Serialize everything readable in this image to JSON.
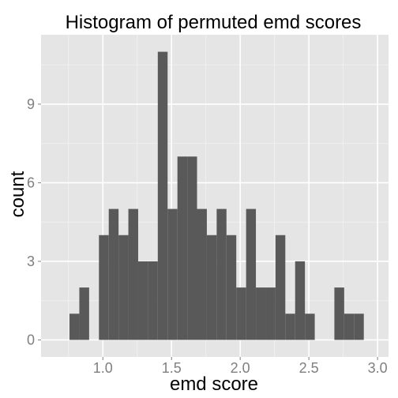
{
  "chart_data": {
    "type": "bar",
    "title": "Histogram of permuted emd scores",
    "xlabel": "emd score",
    "ylabel": "count",
    "xlim": [
      0.55,
      3.08
    ],
    "ylim": [
      -0.65,
      11.65
    ],
    "x_ticks": [
      1.0,
      1.5,
      2.0,
      2.5,
      3.0
    ],
    "x_tick_labels": [
      "1.0",
      "1.5",
      "2.0",
      "2.5",
      "3.0"
    ],
    "y_ticks": [
      0,
      3,
      6,
      9
    ],
    "y_tick_labels": [
      "0",
      "3",
      "6",
      "9"
    ],
    "bin_width": 0.0714,
    "bins": [
      {
        "x0": 0.7571,
        "count": 1
      },
      {
        "x0": 0.8286,
        "count": 2
      },
      {
        "x0": 0.9,
        "count": 0
      },
      {
        "x0": 0.9714,
        "count": 4
      },
      {
        "x0": 1.0429,
        "count": 5
      },
      {
        "x0": 1.1143,
        "count": 4
      },
      {
        "x0": 1.1857,
        "count": 5
      },
      {
        "x0": 1.2571,
        "count": 3
      },
      {
        "x0": 1.3286,
        "count": 3
      },
      {
        "x0": 1.4,
        "count": 11
      },
      {
        "x0": 1.4714,
        "count": 5
      },
      {
        "x0": 1.5429,
        "count": 7
      },
      {
        "x0": 1.6143,
        "count": 7
      },
      {
        "x0": 1.6857,
        "count": 5
      },
      {
        "x0": 1.7571,
        "count": 4
      },
      {
        "x0": 1.8286,
        "count": 5
      },
      {
        "x0": 1.9,
        "count": 4
      },
      {
        "x0": 1.9714,
        "count": 2
      },
      {
        "x0": 2.0429,
        "count": 5
      },
      {
        "x0": 2.1143,
        "count": 2
      },
      {
        "x0": 2.1857,
        "count": 2
      },
      {
        "x0": 2.2571,
        "count": 4
      },
      {
        "x0": 2.3286,
        "count": 1
      },
      {
        "x0": 2.4,
        "count": 3
      },
      {
        "x0": 2.4714,
        "count": 1
      },
      {
        "x0": 2.5429,
        "count": 0
      },
      {
        "x0": 2.6143,
        "count": 0
      },
      {
        "x0": 2.6857,
        "count": 2
      },
      {
        "x0": 2.7571,
        "count": 1
      },
      {
        "x0": 2.8286,
        "count": 1
      }
    ],
    "grid": true,
    "colors": {
      "panel": "#e5e5e5",
      "grid_major": "#ffffff",
      "grid_minor": "#f2f2f2",
      "bar": "#595959",
      "tick_text": "#7f7f7f",
      "tick_mark": "#7f7f7f"
    }
  }
}
